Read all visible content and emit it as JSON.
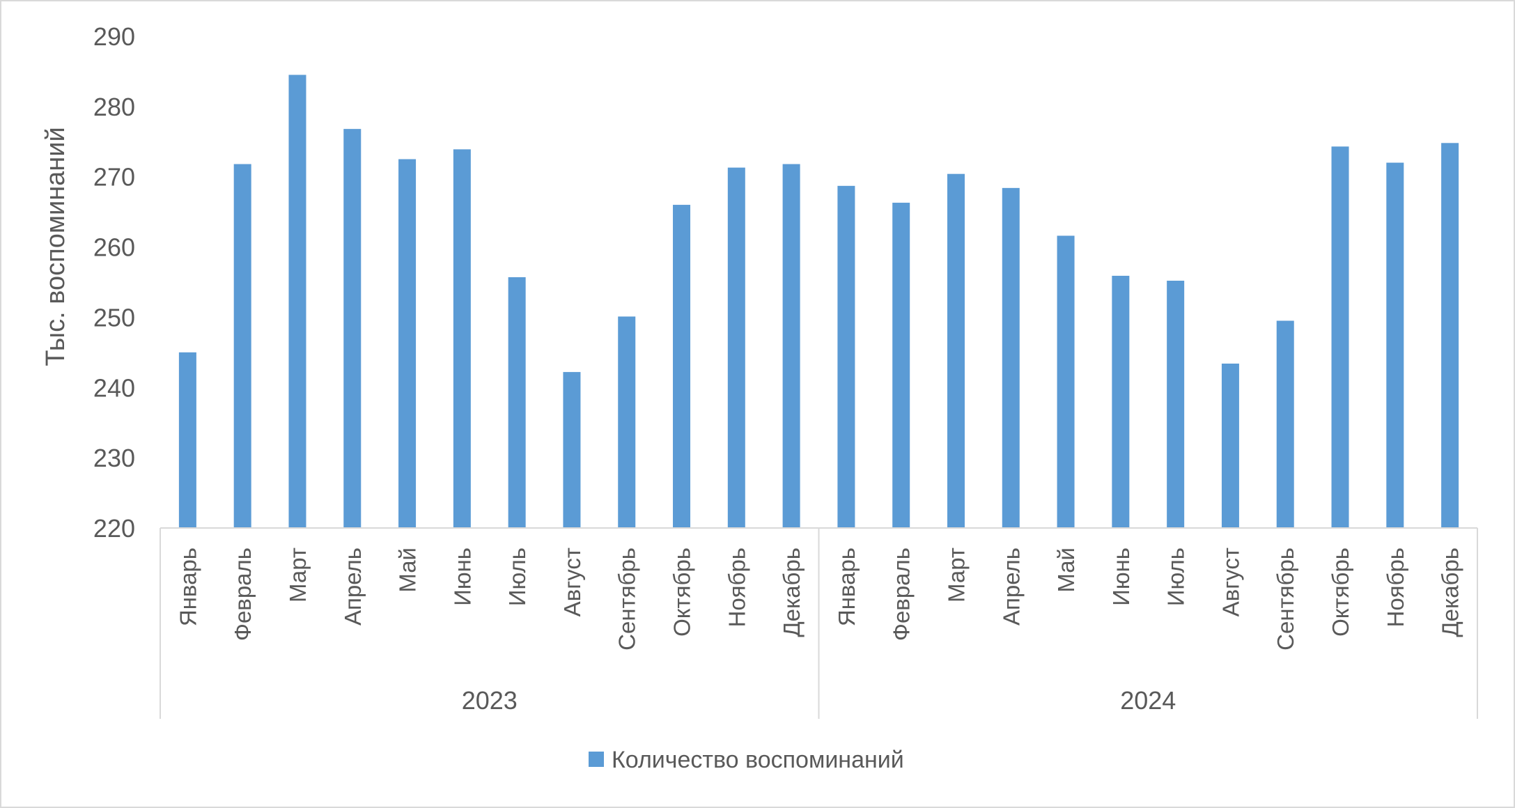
{
  "chart_data": {
    "type": "bar",
    "title": "",
    "xlabel": "",
    "ylabel": "Тыс. воспоминаний",
    "ylim": [
      220,
      290
    ],
    "yticks": [
      220,
      230,
      240,
      250,
      260,
      270,
      280,
      290
    ],
    "grid": false,
    "legend_position": "bottom",
    "groups": [
      {
        "label": "2023",
        "categories": [
          "Январь",
          "Февраль",
          "Март",
          "Апрель",
          "Май",
          "Июнь",
          "Июль",
          "Август",
          "Сентябрь",
          "Октябрь",
          "Ноябрь",
          "Декабрь"
        ]
      },
      {
        "label": "2024",
        "categories": [
          "Январь",
          "Февраль",
          "Март",
          "Апрель",
          "Май",
          "Июнь",
          "Июль",
          "Август",
          "Сентябрь",
          "Октябрь",
          "Ноябрь",
          "Декабрь"
        ]
      }
    ],
    "series": [
      {
        "name": "Количество воспоминаний",
        "color": "#5b9bd5",
        "values": [
          245.0,
          271.8,
          284.5,
          276.8,
          272.5,
          273.9,
          255.7,
          242.2,
          250.1,
          266.0,
          271.3,
          271.8,
          268.7,
          266.3,
          270.4,
          268.4,
          261.6,
          255.9,
          255.2,
          243.4,
          249.5,
          274.3,
          272.0,
          274.8
        ]
      }
    ]
  }
}
